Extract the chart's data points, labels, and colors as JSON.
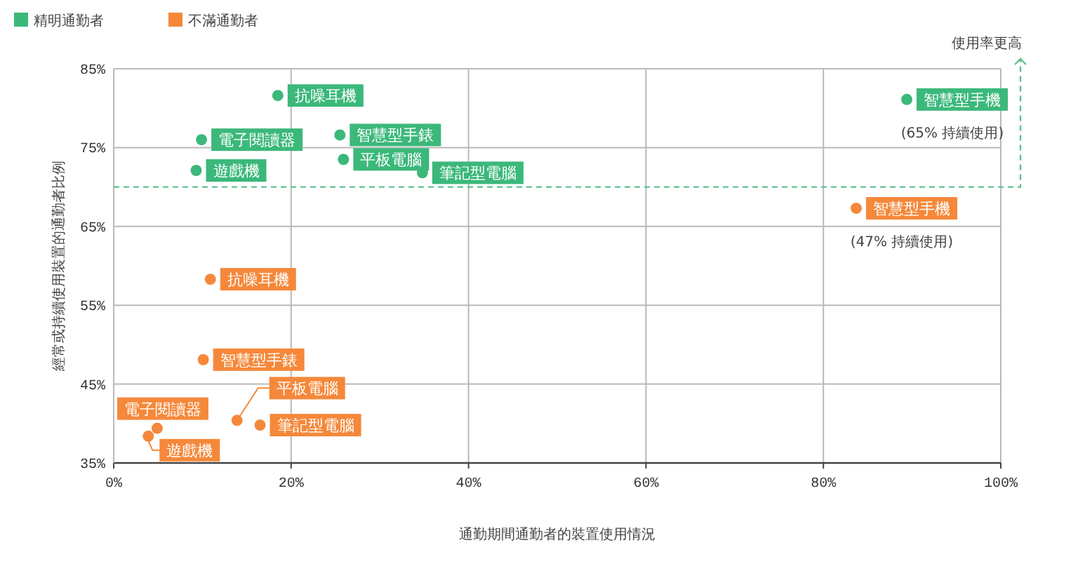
{
  "chart_data": {
    "type": "scatter",
    "xlabel": "通勤期間通勤者的裝置使用情況",
    "ylabel": "經常或持續使用裝置的通勤者比例",
    "xlim": [
      0,
      100
    ],
    "ylim": [
      35,
      85
    ],
    "xticks": [
      {
        "value": 0,
        "label": "0%"
      },
      {
        "value": 20,
        "label": "20%"
      },
      {
        "value": 40,
        "label": "40%"
      },
      {
        "value": 60,
        "label": "60%"
      },
      {
        "value": 80,
        "label": "80%"
      },
      {
        "value": 100,
        "label": "100%"
      }
    ],
    "yticks": [
      {
        "value": 35,
        "label": "35%"
      },
      {
        "value": 45,
        "label": "45%"
      },
      {
        "value": 55,
        "label": "55%"
      },
      {
        "value": 65,
        "label": "65%"
      },
      {
        "value": 75,
        "label": "75%"
      },
      {
        "value": 85,
        "label": "85%"
      }
    ],
    "grid": true,
    "legend": "top left",
    "marker": "circle",
    "series": [
      {
        "name": "精明通勤者",
        "color": "#3bb87a",
        "x": [
          18.5,
          9.9,
          9.3,
          25.5,
          25.9,
          34.8,
          89.4
        ],
        "values": [
          81.6,
          76.0,
          72.1,
          76.6,
          73.5,
          71.8,
          81.1
        ]
      },
      {
        "name": "不滿通勤者",
        "color": "#f5883a",
        "x": [
          10.9,
          10.1,
          13.9,
          16.5,
          4.9,
          3.9,
          83.7
        ],
        "values": [
          58.3,
          48.1,
          40.4,
          39.8,
          39.4,
          38.4,
          67.3
        ]
      }
    ],
    "ref_lines": [
      {
        "axis": "y",
        "value": 70,
        "label": "使用率更高",
        "color": "#5cc48f",
        "line_style": "dashed"
      }
    ],
    "annotations": [
      {
        "text": "抗噪耳機",
        "x": 18.5,
        "y": 81.6
      },
      {
        "text": "電子閱讀器",
        "x": 9.9,
        "y": 76.0
      },
      {
        "text": "遊戲機",
        "x": 9.3,
        "y": 72.1
      },
      {
        "text": "智慧型手錶",
        "x": 25.5,
        "y": 76.6
      },
      {
        "text": "平板電腦",
        "x": 25.9,
        "y": 73.5
      },
      {
        "text": "筆記型電腦",
        "x": 34.8,
        "y": 71.8
      },
      {
        "text": "智慧型手機",
        "x": 89.4,
        "y": 81.1
      },
      {
        "text": "抗噪耳機",
        "x": 10.9,
        "y": 58.3
      },
      {
        "text": "智慧型手錶",
        "x": 10.1,
        "y": 48.1
      },
      {
        "text": "平板電腦",
        "x": 13.9,
        "y": 40.4
      },
      {
        "text": "筆記型電腦",
        "x": 16.5,
        "y": 39.8
      },
      {
        "text": "電子閱讀器",
        "x": 4.9,
        "y": 39.4
      },
      {
        "text": "遊戲機",
        "x": 3.9,
        "y": 38.4
      },
      {
        "text": "智慧型手機",
        "x": 83.7,
        "y": 67.3
      },
      {
        "text": "(65% 持續使用)",
        "x": 89.4,
        "y": 81.1
      },
      {
        "text": "(47% 持續使用)",
        "x": 83.7,
        "y": 67.3
      }
    ]
  }
}
